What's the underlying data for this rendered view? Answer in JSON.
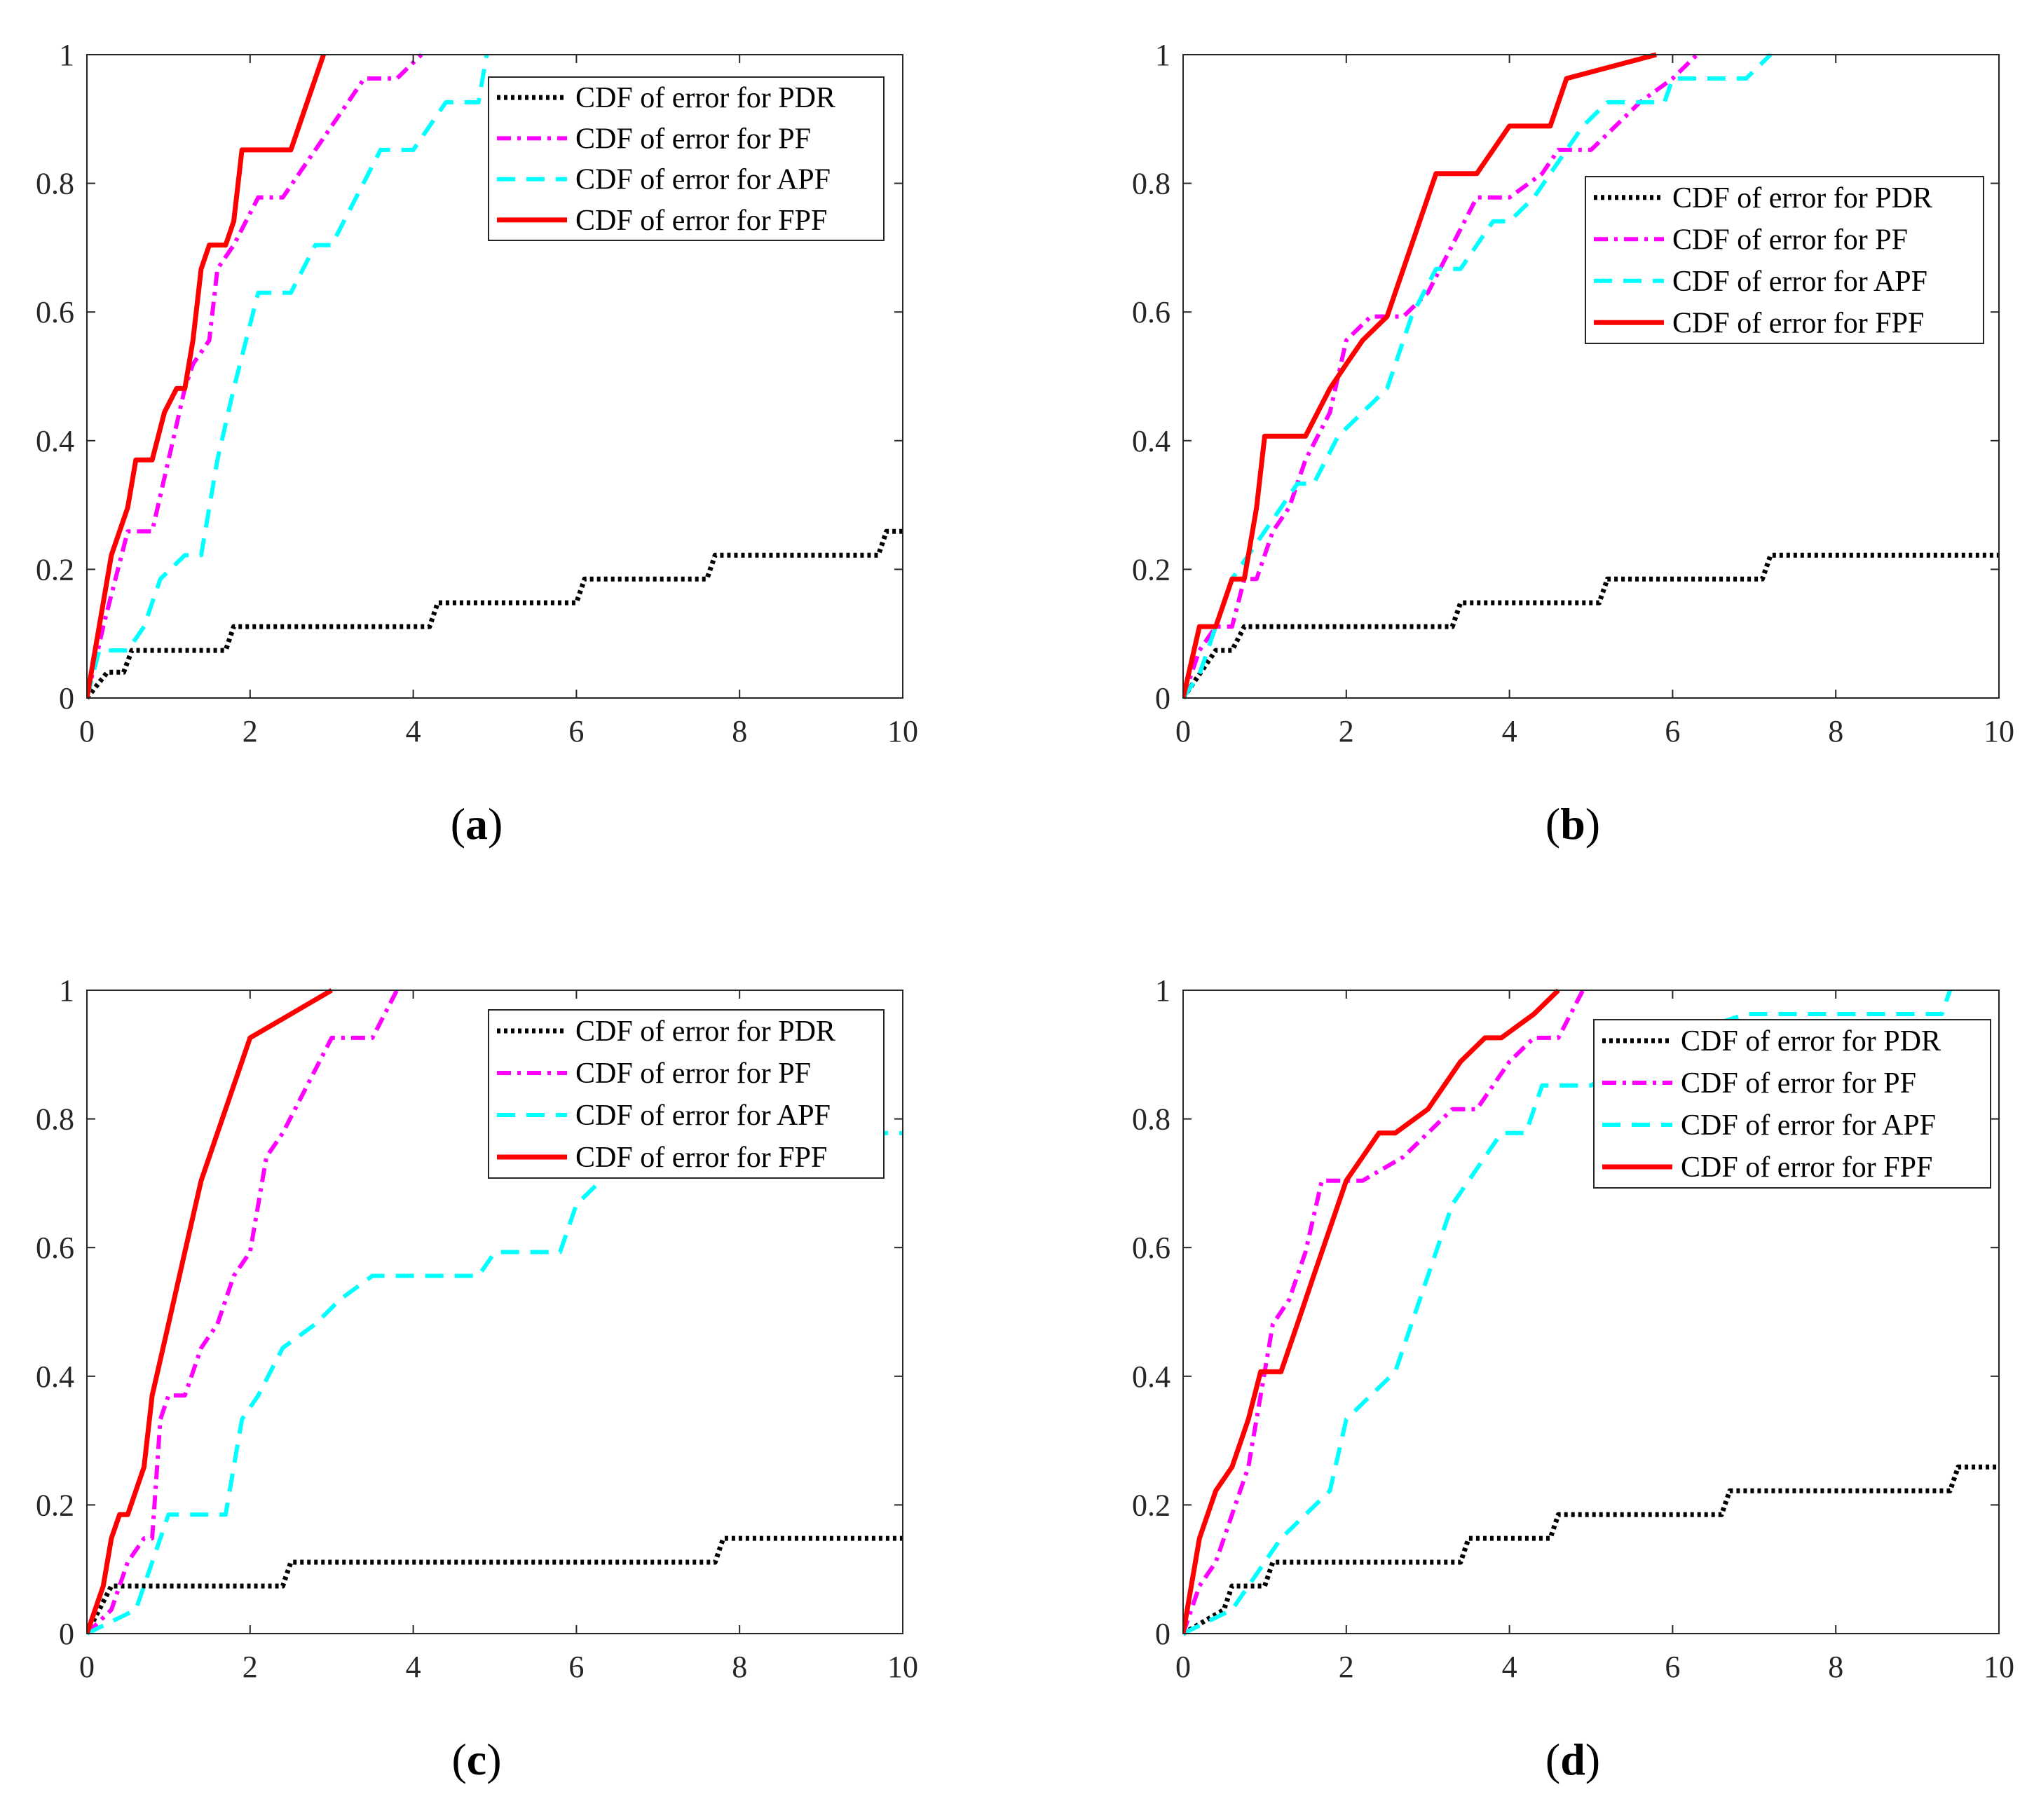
{
  "figure": {
    "style": {
      "colors": {
        "PDR": "#000000",
        "PF": "#ff00ff",
        "APF": "#00ffff",
        "FPF": "#ff0000",
        "axis": "#262626"
      },
      "dash": {
        "PDR": "dotted",
        "PF": "dash-dot",
        "APF": "dashed",
        "FPF": "solid"
      }
    }
  },
  "chart_data": [
    {
      "type": "line",
      "panel_id": "a",
      "caption": {
        "open": "(",
        "letter": "a",
        "close": ")"
      },
      "xlabel": "",
      "ylabel": "",
      "xlim": [
        0,
        10
      ],
      "ylim": [
        0,
        1
      ],
      "xticks": [
        "0",
        "2",
        "4",
        "6",
        "8",
        "10"
      ],
      "yticks": [
        "0",
        "0.2",
        "0.4",
        "0.6",
        "0.8",
        "1"
      ],
      "legend_position": "top-right",
      "series": [
        {
          "key": "PDR",
          "name": "CDF of error for PDR",
          "x": [
            0,
            0.25,
            0.45,
            0.55,
            1.7,
            1.8,
            4.2,
            4.3,
            6.0,
            6.1,
            7.6,
            7.7,
            9.7,
            9.8,
            10
          ],
          "y": [
            0,
            0.04,
            0.04,
            0.074,
            0.074,
            0.111,
            0.111,
            0.148,
            0.148,
            0.185,
            0.185,
            0.222,
            0.222,
            0.259,
            0.259
          ]
        },
        {
          "key": "PF",
          "name": "CDF of error for PF",
          "x": [
            0,
            0.2,
            0.35,
            0.5,
            0.8,
            1.0,
            1.2,
            1.3,
            1.5,
            1.6,
            1.8,
            2.1,
            2.4,
            2.6,
            3.0,
            3.4,
            3.8,
            4.1
          ],
          "y": [
            0,
            0.111,
            0.185,
            0.259,
            0.259,
            0.37,
            0.481,
            0.519,
            0.556,
            0.667,
            0.704,
            0.778,
            0.778,
            0.815,
            0.889,
            0.963,
            0.963,
            1.0
          ]
        },
        {
          "key": "APF",
          "name": "CDF of error for APF",
          "x": [
            0,
            0.15,
            0.5,
            0.7,
            0.9,
            1.2,
            1.4,
            1.6,
            1.8,
            2.1,
            2.5,
            2.8,
            3.0,
            3.3,
            3.6,
            4.0,
            4.4,
            4.8,
            4.9
          ],
          "y": [
            0,
            0.074,
            0.074,
            0.111,
            0.185,
            0.222,
            0.222,
            0.37,
            0.481,
            0.63,
            0.63,
            0.704,
            0.704,
            0.778,
            0.852,
            0.852,
            0.926,
            0.926,
            1.0
          ]
        },
        {
          "key": "FPF",
          "name": "CDF of error for FPF",
          "x": [
            0,
            0.15,
            0.3,
            0.5,
            0.6,
            0.8,
            0.95,
            1.1,
            1.2,
            1.3,
            1.4,
            1.5,
            1.7,
            1.8,
            1.9,
            2.5,
            2.8,
            2.9
          ],
          "y": [
            0,
            0.111,
            0.222,
            0.296,
            0.37,
            0.37,
            0.444,
            0.481,
            0.481,
            0.556,
            0.667,
            0.704,
            0.704,
            0.741,
            0.852,
            0.852,
            0.963,
            1.0
          ]
        }
      ]
    },
    {
      "type": "line",
      "panel_id": "b",
      "caption": {
        "open": "(",
        "letter": "b",
        "close": ")"
      },
      "xlabel": "",
      "ylabel": "",
      "xlim": [
        0,
        10
      ],
      "ylim": [
        0,
        1
      ],
      "xticks": [
        "0",
        "2",
        "4",
        "6",
        "8",
        "10"
      ],
      "yticks": [
        "0",
        "0.2",
        "0.4",
        "0.6",
        "0.8",
        "1"
      ],
      "legend_position": "upper-right",
      "series": [
        {
          "key": "PDR",
          "name": "CDF of error for PDR",
          "x": [
            0,
            0.4,
            0.6,
            0.75,
            3.3,
            3.4,
            5.1,
            5.2,
            7.1,
            7.2,
            10
          ],
          "y": [
            0,
            0.074,
            0.074,
            0.111,
            0.111,
            0.148,
            0.148,
            0.185,
            0.185,
            0.222,
            0.222
          ]
        },
        {
          "key": "PF",
          "name": "CDF of error for PF",
          "x": [
            0,
            0.2,
            0.4,
            0.6,
            0.75,
            0.9,
            1.1,
            1.3,
            1.5,
            1.8,
            2.0,
            2.3,
            2.7,
            3.0,
            3.3,
            3.6,
            4.0,
            4.4,
            4.6,
            5.0,
            5.3,
            5.6,
            6.0,
            6.3
          ],
          "y": [
            0,
            0.074,
            0.111,
            0.111,
            0.185,
            0.185,
            0.259,
            0.296,
            0.37,
            0.444,
            0.556,
            0.593,
            0.593,
            0.63,
            0.704,
            0.778,
            0.778,
            0.815,
            0.852,
            0.852,
            0.889,
            0.926,
            0.963,
            1.0
          ]
        },
        {
          "key": "APF",
          "name": "CDF of error for APF",
          "x": [
            0,
            0.2,
            0.4,
            0.6,
            0.8,
            1.0,
            1.2,
            1.4,
            1.6,
            1.9,
            2.2,
            2.5,
            2.8,
            3.1,
            3.4,
            3.8,
            4.0,
            4.3,
            4.5,
            4.9,
            5.2,
            5.9,
            6.0,
            6.9,
            7.2
          ],
          "y": [
            0,
            0.037,
            0.111,
            0.185,
            0.222,
            0.259,
            0.296,
            0.333,
            0.333,
            0.407,
            0.444,
            0.481,
            0.593,
            0.667,
            0.667,
            0.741,
            0.741,
            0.778,
            0.815,
            0.889,
            0.926,
            0.926,
            0.963,
            0.963,
            1.0
          ]
        },
        {
          "key": "FPF",
          "name": "CDF of error for FPF",
          "x": [
            0,
            0.2,
            0.4,
            0.6,
            0.75,
            0.9,
            1.0,
            1.5,
            1.8,
            2.0,
            2.2,
            2.5,
            2.8,
            3.1,
            3.6,
            4.0,
            4.5,
            4.7,
            5.8
          ],
          "y": [
            0,
            0.111,
            0.111,
            0.185,
            0.185,
            0.296,
            0.407,
            0.407,
            0.481,
            0.519,
            0.556,
            0.593,
            0.704,
            0.815,
            0.815,
            0.889,
            0.889,
            0.963,
            1.0
          ]
        }
      ]
    },
    {
      "type": "line",
      "panel_id": "c",
      "caption": {
        "open": "(",
        "letter": "c",
        "close": ")"
      },
      "xlabel": "",
      "ylabel": "",
      "xlim": [
        0,
        10
      ],
      "ylim": [
        0,
        1
      ],
      "xticks": [
        "0",
        "2",
        "4",
        "6",
        "8",
        "10"
      ],
      "yticks": [
        "0",
        "0.2",
        "0.4",
        "0.6",
        "0.8",
        "1"
      ],
      "legend_position": "top-right",
      "series": [
        {
          "key": "PDR",
          "name": "CDF of error for PDR",
          "x": [
            0,
            0.3,
            2.4,
            2.5,
            7.7,
            7.8,
            10
          ],
          "y": [
            0,
            0.074,
            0.074,
            0.111,
            0.111,
            0.148,
            0.148
          ]
        },
        {
          "key": "PF",
          "name": "CDF of error for PF",
          "x": [
            0,
            0.3,
            0.5,
            0.7,
            0.8,
            0.9,
            1.0,
            1.2,
            1.4,
            1.6,
            1.8,
            2.0,
            2.2,
            2.4,
            2.7,
            3.0,
            3.5,
            3.8
          ],
          "y": [
            0,
            0.037,
            0.111,
            0.148,
            0.148,
            0.333,
            0.37,
            0.37,
            0.444,
            0.481,
            0.556,
            0.593,
            0.741,
            0.778,
            0.852,
            0.926,
            0.926,
            1.0
          ]
        },
        {
          "key": "APF",
          "name": "CDF of error for APF",
          "x": [
            0,
            0.6,
            0.8,
            1.0,
            1.7,
            1.9,
            2.1,
            2.4,
            2.8,
            3.1,
            3.5,
            4.8,
            5.0,
            5.8,
            6.0,
            6.3,
            6.6,
            10.0
          ],
          "y": [
            0,
            0.037,
            0.111,
            0.185,
            0.185,
            0.333,
            0.37,
            0.444,
            0.481,
            0.519,
            0.556,
            0.556,
            0.593,
            0.593,
            0.667,
            0.704,
            0.778,
            0.778
          ]
        },
        {
          "key": "FPF",
          "name": "CDF of error for FPF",
          "x": [
            0,
            0.2,
            0.3,
            0.4,
            0.5,
            0.7,
            0.8,
            1.0,
            1.2,
            1.4,
            1.6,
            1.8,
            2.0,
            2.5,
            3.0
          ],
          "y": [
            0,
            0.074,
            0.148,
            0.185,
            0.185,
            0.259,
            0.37,
            0.481,
            0.593,
            0.704,
            0.778,
            0.852,
            0.926,
            0.963,
            1.0
          ]
        }
      ]
    },
    {
      "type": "line",
      "panel_id": "d",
      "caption": {
        "open": "(",
        "letter": "d",
        "close": ")"
      },
      "xlabel": "",
      "ylabel": "",
      "xlim": [
        0,
        10
      ],
      "ylim": [
        0,
        1
      ],
      "xticks": [
        "0",
        "2",
        "4",
        "6",
        "8",
        "10"
      ],
      "yticks": [
        "0",
        "0.2",
        "0.4",
        "0.6",
        "0.8",
        "1"
      ],
      "legend_position": "top-right",
      "series": [
        {
          "key": "PDR",
          "name": "CDF of error for PDR",
          "x": [
            0,
            0.5,
            0.6,
            1.0,
            1.1,
            3.4,
            3.5,
            4.5,
            4.6,
            6.6,
            6.7,
            9.4,
            9.5,
            10
          ],
          "y": [
            0,
            0.037,
            0.074,
            0.074,
            0.111,
            0.111,
            0.148,
            0.148,
            0.185,
            0.185,
            0.222,
            0.222,
            0.259,
            0.259
          ]
        },
        {
          "key": "PF",
          "name": "CDF of error for PF",
          "x": [
            0,
            0.2,
            0.4,
            0.6,
            0.8,
            1.0,
            1.1,
            1.3,
            1.5,
            1.7,
            1.9,
            2.2,
            2.7,
            3.0,
            3.3,
            3.6,
            4.0,
            4.3,
            4.6,
            4.9
          ],
          "y": [
            0,
            0.074,
            0.111,
            0.185,
            0.259,
            0.407,
            0.481,
            0.519,
            0.593,
            0.704,
            0.704,
            0.704,
            0.741,
            0.778,
            0.815,
            0.815,
            0.889,
            0.926,
            0.926,
            1.0
          ]
        },
        {
          "key": "APF",
          "name": "CDF of error for APF",
          "x": [
            0,
            0.6,
            0.8,
            1.0,
            1.2,
            1.5,
            1.8,
            2.0,
            2.3,
            2.6,
            2.9,
            3.1,
            3.3,
            3.7,
            3.9,
            4.2,
            4.4,
            5.0,
            6.0,
            6.9,
            9.3,
            9.4
          ],
          "y": [
            0,
            0.037,
            0.074,
            0.111,
            0.148,
            0.185,
            0.222,
            0.333,
            0.37,
            0.407,
            0.519,
            0.593,
            0.667,
            0.741,
            0.778,
            0.778,
            0.852,
            0.852,
            0.926,
            0.963,
            0.963,
            1.0
          ]
        },
        {
          "key": "FPF",
          "name": "CDF of error for FPF",
          "x": [
            0,
            0.2,
            0.4,
            0.6,
            0.8,
            0.95,
            1.2,
            1.4,
            1.6,
            1.8,
            2.0,
            2.2,
            2.4,
            2.6,
            3.0,
            3.2,
            3.4,
            3.7,
            3.9,
            4.3,
            4.6
          ],
          "y": [
            0,
            0.148,
            0.222,
            0.259,
            0.333,
            0.407,
            0.407,
            0.481,
            0.556,
            0.63,
            0.704,
            0.741,
            0.778,
            0.778,
            0.815,
            0.852,
            0.889,
            0.926,
            0.926,
            0.963,
            1.0
          ]
        }
      ]
    }
  ]
}
